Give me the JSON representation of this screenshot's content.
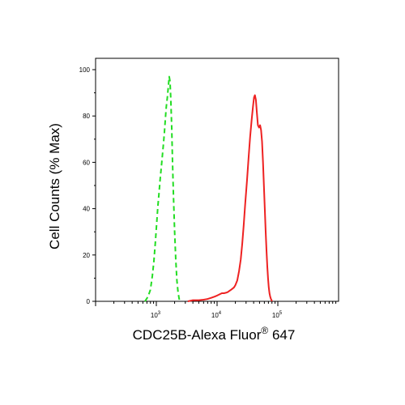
{
  "chart_data": {
    "type": "line",
    "title": "",
    "xlabel": "CDC25B-Alexa Fluor",
    "xlabel_superscript": "®",
    "xlabel_suffix": " 647",
    "ylabel": "Cell Counts (% Max)",
    "x_scale": "log",
    "xlim": [
      100,
      1000000
    ],
    "ylim": [
      0,
      100
    ],
    "x_ticks": [
      {
        "value": 1000,
        "base": "10",
        "exp": "3"
      },
      {
        "value": 10000,
        "base": "10",
        "exp": "4"
      },
      {
        "value": 100000,
        "base": "10",
        "exp": "5"
      }
    ],
    "y_ticks": [
      {
        "value": 0,
        "label": "0"
      },
      {
        "value": 20,
        "label": "20"
      },
      {
        "value": 40,
        "label": "40"
      },
      {
        "value": 60,
        "label": "60"
      },
      {
        "value": 80,
        "label": "80"
      },
      {
        "value": 100,
        "label": "100"
      }
    ],
    "grid": false,
    "series": [
      {
        "color": "#22dd22",
        "dash": "dashed",
        "x": [
          650,
          730,
          800,
          860,
          910,
          960,
          1010,
          1060,
          1110,
          1160,
          1210,
          1260,
          1310,
          1360,
          1410,
          1460,
          1520,
          1580,
          1630,
          1680,
          1730,
          1790,
          1850,
          1920,
          2000,
          2090,
          2180,
          2280,
          2380,
          2520
        ],
        "y": [
          0,
          2,
          5,
          11,
          17,
          25,
          33,
          41,
          47,
          53,
          58,
          63,
          68,
          73,
          79,
          84,
          88,
          93,
          97,
          95,
          87,
          75,
          60,
          45,
          30,
          18,
          9,
          4,
          1,
          0
        ]
      },
      {
        "color": "#ee2222",
        "dash": "solid",
        "x": [
          3300,
          4000,
          5000,
          6000,
          7000,
          8000,
          9000,
          10000,
          11000,
          12000,
          13000,
          14000,
          15000,
          16000,
          17000,
          18000,
          19000,
          20000,
          21500,
          23000,
          24500,
          26000,
          27500,
          29000,
          31000,
          33000,
          35000,
          37000,
          39000,
          40500,
          42000,
          43500,
          45000,
          47000,
          49000,
          51000,
          53000,
          55000,
          57000,
          59000,
          61000,
          63000,
          65000,
          67000,
          69000,
          71000,
          73000,
          75000,
          77000,
          79000,
          80000
        ],
        "y": [
          0,
          0.5,
          0.5,
          0.7,
          1,
          1.5,
          2,
          2.5,
          3,
          3.5,
          3.5,
          3.7,
          4,
          4.5,
          5,
          5.5,
          6,
          7,
          9,
          13,
          18,
          25,
          33,
          42,
          52,
          62,
          71,
          78,
          84,
          88,
          89,
          87,
          82,
          76,
          75,
          76,
          74,
          69,
          60,
          50,
          40,
          30,
          22,
          15,
          10,
          6,
          3.5,
          2,
          1,
          0.5,
          0
        ]
      }
    ]
  }
}
